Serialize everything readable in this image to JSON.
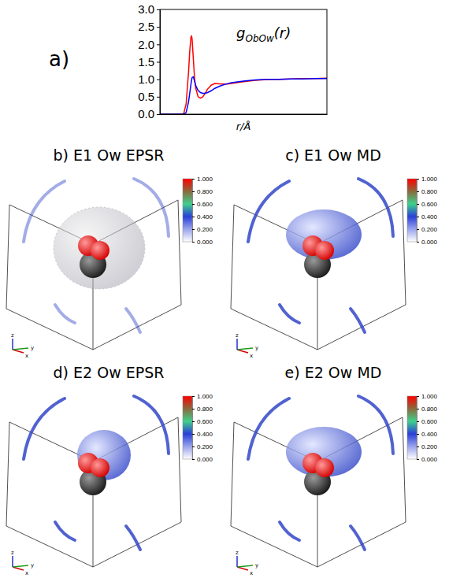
{
  "chart_data": [
    {
      "type": "line",
      "label": "a)",
      "annotation": {
        "base": "g",
        "subscript": "ObOw",
        "suffix": "(r)"
      },
      "x_label": "r/Å",
      "tick_labels": "y",
      "grid": false,
      "xlim": [
        0,
        14
      ],
      "ylim": [
        0,
        3
      ],
      "yticks": [
        {
          "value": 0,
          "label": "0.0"
        },
        {
          "value": 0.5,
          "label": "0.5"
        },
        {
          "value": 1,
          "label": "1.0"
        },
        {
          "value": 1.5,
          "label": "1.5"
        },
        {
          "value": 2,
          "label": "2.0"
        },
        {
          "value": 2.5,
          "label": "2.5"
        },
        {
          "value": 3,
          "label": "3.0"
        }
      ],
      "x": [
        0,
        0.5,
        1,
        1.5,
        1.8,
        2.0,
        2.2,
        2.4,
        2.5,
        2.6,
        2.65,
        2.7,
        2.8,
        2.9,
        3.0,
        3.2,
        3.4,
        3.6,
        3.8,
        4.0,
        4.3,
        4.6,
        5.0,
        5.5,
        6,
        7,
        8,
        9,
        10,
        11,
        12,
        13,
        14
      ],
      "series": [
        {
          "color": "#ff0000",
          "values": [
            0,
            0,
            0,
            0,
            0,
            0.02,
            0.3,
            1.2,
            1.8,
            2.2,
            2.25,
            2.15,
            1.6,
            1.05,
            0.75,
            0.5,
            0.46,
            0.5,
            0.6,
            0.72,
            0.83,
            0.88,
            0.87,
            0.86,
            0.88,
            0.93,
            0.97,
            0.99,
            1.0,
            1.01,
            1.02,
            1.02,
            1.03
          ]
        },
        {
          "color": "#0000ff",
          "values": [
            0,
            0,
            0,
            0,
            0,
            0,
            0.05,
            0.35,
            0.6,
            0.85,
            0.97,
            1.05,
            1.07,
            0.95,
            0.82,
            0.68,
            0.62,
            0.6,
            0.6,
            0.62,
            0.67,
            0.74,
            0.8,
            0.86,
            0.9,
            0.95,
            0.98,
            1.0,
            1.0,
            1.01,
            1.01,
            1.02,
            1.02
          ]
        }
      ]
    },
    {
      "type": "isosurface",
      "title": "b) E1 Ow EPSR",
      "axis_labels": [
        "x",
        "y",
        "z"
      ],
      "colorbar": {
        "range": [
          0,
          1
        ],
        "ticks": [
          {
            "value": 0,
            "label": "0.000"
          },
          {
            "value": 0.2,
            "label": "0.200"
          },
          {
            "value": 0.4,
            "label": "0.400"
          },
          {
            "value": 0.6,
            "label": "0.600"
          },
          {
            "value": 0.8,
            "label": "0.800"
          },
          {
            "value": 1,
            "label": "1.000"
          }
        ]
      }
    },
    {
      "type": "isosurface",
      "title": "c) E1 Ow MD",
      "axis_labels": [
        "x",
        "y",
        "z"
      ],
      "colorbar": {
        "range": [
          0,
          1
        ],
        "ticks": [
          {
            "value": 0,
            "label": "0.000"
          },
          {
            "value": 0.2,
            "label": "0.200"
          },
          {
            "value": 0.4,
            "label": "0.400"
          },
          {
            "value": 0.6,
            "label": "0.600"
          },
          {
            "value": 0.8,
            "label": "0.800"
          },
          {
            "value": 1,
            "label": "1.000"
          }
        ]
      }
    },
    {
      "type": "isosurface",
      "title": "d) E2 Ow EPSR",
      "axis_labels": [
        "x",
        "y",
        "z"
      ],
      "colorbar": {
        "range": [
          0,
          1
        ],
        "ticks": [
          {
            "value": 0,
            "label": "0.000"
          },
          {
            "value": 0.2,
            "label": "0.200"
          },
          {
            "value": 0.4,
            "label": "0.400"
          },
          {
            "value": 0.6,
            "label": "0.600"
          },
          {
            "value": 0.8,
            "label": "0.800"
          },
          {
            "value": 1,
            "label": "1.000"
          }
        ]
      }
    },
    {
      "type": "isosurface",
      "title": "e) E2 Ow MD",
      "axis_labels": [
        "x",
        "y",
        "z"
      ],
      "colorbar": {
        "range": [
          0,
          1
        ],
        "ticks": [
          {
            "value": 0,
            "label": "0.000"
          },
          {
            "value": 0.2,
            "label": "0.200"
          },
          {
            "value": 0.4,
            "label": "0.400"
          },
          {
            "value": 0.6,
            "label": "0.600"
          },
          {
            "value": 0.8,
            "label": "0.800"
          },
          {
            "value": 1,
            "label": "1.000"
          }
        ]
      }
    }
  ]
}
